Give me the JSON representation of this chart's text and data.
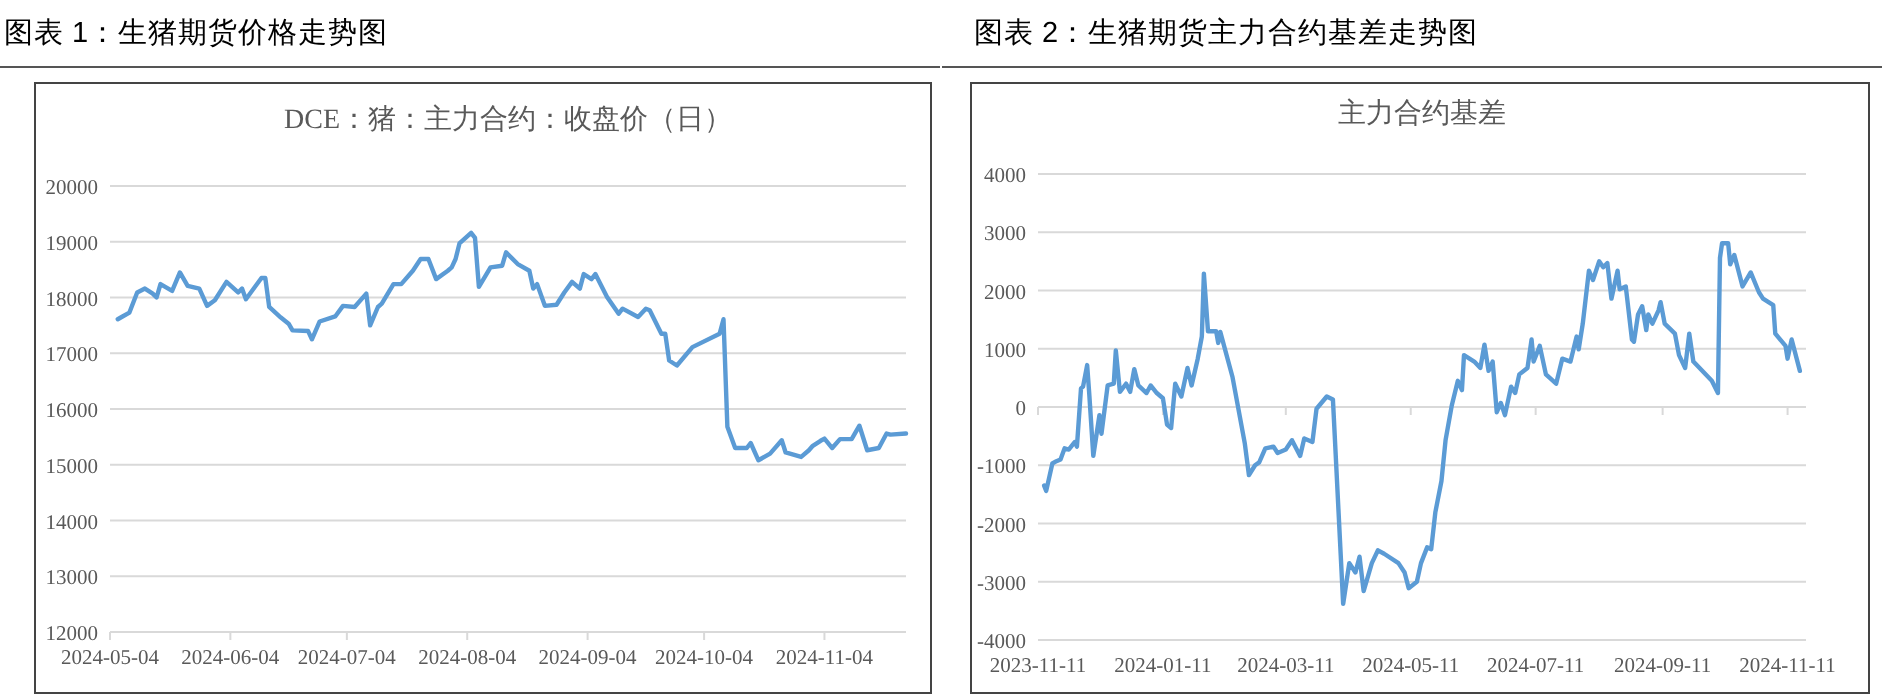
{
  "chart_data": [
    {
      "type": "line",
      "title": "图表 1：生猪期货价格走势图",
      "subtitle": "DCE：猪：主力合约：收盘价（日）",
      "grid": "y",
      "xlim": [
        "2024-05-04",
        "2024-11-25"
      ],
      "xticks": [
        "2024-05-04",
        "2024-06-04",
        "2024-07-04",
        "2024-08-04",
        "2024-09-04",
        "2024-10-04",
        "2024-11-04"
      ],
      "ylim": [
        12000,
        20000
      ],
      "yticks": [
        12000,
        13000,
        14000,
        15000,
        16000,
        17000,
        18000,
        19000,
        20000
      ],
      "x": [
        "2024-05-06",
        "2024-05-07",
        "2024-05-09",
        "2024-05-11",
        "2024-05-13",
        "2024-05-15",
        "2024-05-16",
        "2024-05-17",
        "2024-05-20",
        "2024-05-22",
        "2024-05-24",
        "2024-05-27",
        "2024-05-29",
        "2024-05-31",
        "2024-06-03",
        "2024-06-06",
        "2024-06-07",
        "2024-06-08",
        "2024-06-12",
        "2024-06-13",
        "2024-06-14",
        "2024-06-17",
        "2024-06-19",
        "2024-06-20",
        "2024-06-24",
        "2024-06-25",
        "2024-06-27",
        "2024-07-01",
        "2024-07-03",
        "2024-07-06",
        "2024-07-09",
        "2024-07-10",
        "2024-07-12",
        "2024-07-13",
        "2024-07-16",
        "2024-07-18",
        "2024-07-21",
        "2024-07-23",
        "2024-07-25",
        "2024-07-27",
        "2024-07-30",
        "2024-07-31",
        "2024-08-01",
        "2024-08-02",
        "2024-08-05",
        "2024-08-06",
        "2024-08-07",
        "2024-08-10",
        "2024-08-13",
        "2024-08-14",
        "2024-08-17",
        "2024-08-20",
        "2024-08-21",
        "2024-08-22",
        "2024-08-24",
        "2024-08-27",
        "2024-08-29",
        "2024-08-31",
        "2024-09-02",
        "2024-09-03",
        "2024-09-05",
        "2024-09-06",
        "2024-09-09",
        "2024-09-12",
        "2024-09-13",
        "2024-09-17",
        "2024-09-19",
        "2024-09-20",
        "2024-09-23",
        "2024-09-24",
        "2024-09-25",
        "2024-09-27",
        "2024-10-01",
        "2024-10-08",
        "2024-10-09",
        "2024-10-10",
        "2024-10-12",
        "2024-10-15",
        "2024-10-16",
        "2024-10-18",
        "2024-10-21",
        "2024-10-24",
        "2024-10-25",
        "2024-10-29",
        "2024-10-31",
        "2024-11-01",
        "2024-11-03",
        "2024-11-04",
        "2024-11-06",
        "2024-11-08",
        "2024-11-11",
        "2024-11-13",
        "2024-11-15",
        "2024-11-18",
        "2024-11-20",
        "2024-11-21",
        "2024-11-25"
      ],
      "series": [
        {
          "color": "#5b9bd5",
          "values": [
            17610,
            17650,
            17730,
            18090,
            18160,
            18070,
            18000,
            18240,
            18120,
            18450,
            18210,
            18160,
            17850,
            17950,
            18280,
            18090,
            18160,
            17970,
            18350,
            18350,
            17830,
            17640,
            17530,
            17410,
            17400,
            17250,
            17570,
            17660,
            17850,
            17830,
            18070,
            17500,
            17830,
            17890,
            18240,
            18240,
            18480,
            18690,
            18690,
            18330,
            18480,
            18540,
            18690,
            18970,
            19160,
            19070,
            18190,
            18540,
            18570,
            18810,
            18600,
            18480,
            18160,
            18240,
            17850,
            17870,
            18090,
            18280,
            18160,
            18420,
            18330,
            18420,
            18010,
            17710,
            17800,
            17650,
            17800,
            17770,
            17350,
            17350,
            16870,
            16780,
            17110,
            17350,
            17610,
            15680,
            15300,
            15300,
            15390,
            15080,
            15200,
            15440,
            15220,
            15140,
            15260,
            15340,
            15430,
            15470,
            15300,
            15460,
            15460,
            15700,
            15260,
            15300,
            15560,
            15540,
            15560
          ]
        }
      ]
    },
    {
      "type": "line",
      "title": "图表 2：生猪期货主力合约基差走势图",
      "subtitle": "主力合约基差",
      "grid": "y",
      "xlim": [
        "2023-11-11",
        "2024-11-20"
      ],
      "xticks": [
        "2023-11-11",
        "2024-01-11",
        "2024-03-11",
        "2024-05-11",
        "2024-07-11",
        "2024-09-11",
        "2024-11-11"
      ],
      "ylim": [
        -4000,
        4000
      ],
      "yticks": [
        -4000,
        -3000,
        -2000,
        -1000,
        0,
        1000,
        2000,
        3000,
        4000
      ],
      "x": [
        "2023-11-14",
        "2023-11-15",
        "2023-11-18",
        "2023-11-20",
        "2023-11-22",
        "2023-11-24",
        "2023-11-26",
        "2023-11-29",
        "2023-11-30",
        "2023-12-02",
        "2023-12-03",
        "2023-12-05",
        "2023-12-06",
        "2023-12-08",
        "2023-12-11",
        "2023-12-12",
        "2023-12-15",
        "2023-12-18",
        "2023-12-19",
        "2023-12-21",
        "2023-12-24",
        "2023-12-26",
        "2023-12-28",
        "2023-12-30",
        "2024-01-03",
        "2024-01-05",
        "2024-01-08",
        "2024-01-11",
        "2024-01-13",
        "2024-01-15",
        "2024-01-17",
        "2024-01-20",
        "2024-01-23",
        "2024-01-25",
        "2024-01-28",
        "2024-01-30",
        "2024-01-31",
        "2024-02-02",
        "2024-02-06",
        "2024-02-07",
        "2024-02-08",
        "2024-02-14",
        "2024-02-20",
        "2024-02-22",
        "2024-02-25",
        "2024-02-27",
        "2024-03-01",
        "2024-03-05",
        "2024-03-07",
        "2024-03-11",
        "2024-03-14",
        "2024-03-18",
        "2024-03-20",
        "2024-03-24",
        "2024-03-26",
        "2024-03-31",
        "2024-04-03",
        "2024-04-08",
        "2024-04-11",
        "2024-04-14",
        "2024-04-16",
        "2024-04-18",
        "2024-04-22",
        "2024-04-25",
        "2024-04-28",
        "2024-05-05",
        "2024-05-08",
        "2024-05-10",
        "2024-05-14",
        "2024-05-16",
        "2024-05-19",
        "2024-05-21",
        "2024-05-23",
        "2024-05-26",
        "2024-05-28",
        "2024-05-31",
        "2024-06-03",
        "2024-06-05",
        "2024-06-06",
        "2024-06-11",
        "2024-06-14",
        "2024-06-16",
        "2024-06-18",
        "2024-06-20",
        "2024-06-22",
        "2024-06-24",
        "2024-06-26",
        "2024-06-29",
        "2024-07-01",
        "2024-07-03",
        "2024-07-07",
        "2024-07-09",
        "2024-07-10",
        "2024-07-13",
        "2024-07-16",
        "2024-07-21",
        "2024-07-24",
        "2024-07-28",
        "2024-07-31",
        "2024-08-01",
        "2024-08-03",
        "2024-08-06",
        "2024-08-08",
        "2024-08-11",
        "2024-08-13",
        "2024-08-15",
        "2024-08-17",
        "2024-08-20",
        "2024-08-21",
        "2024-08-24",
        "2024-08-27",
        "2024-08-28",
        "2024-08-30",
        "2024-09-01",
        "2024-09-03",
        "2024-09-04",
        "2024-09-06",
        "2024-09-09",
        "2024-09-10",
        "2024-09-12",
        "2024-09-17",
        "2024-09-19",
        "2024-09-22",
        "2024-09-24",
        "2024-09-26",
        "2024-10-05",
        "2024-10-08",
        "2024-10-09",
        "2024-10-10",
        "2024-10-13",
        "2024-10-14",
        "2024-10-16",
        "2024-10-20",
        "2024-10-24",
        "2024-10-28",
        "2024-10-30",
        "2024-11-04",
        "2024-11-05",
        "2024-11-10",
        "2024-11-11",
        "2024-11-13",
        "2024-11-17"
      ],
      "series": [
        {
          "color": "#5b9bd5",
          "values": [
            -1350,
            -1440,
            -970,
            -930,
            -900,
            -710,
            -730,
            -600,
            -680,
            320,
            350,
            720,
            240,
            -840,
            -140,
            -460,
            370,
            400,
            970,
            260,
            400,
            260,
            650,
            370,
            240,
            370,
            240,
            150,
            -300,
            -360,
            400,
            180,
            670,
            370,
            830,
            1210,
            2290,
            1300,
            1300,
            1100,
            1290,
            510,
            -630,
            -1170,
            -1000,
            -950,
            -710,
            -680,
            -790,
            -730,
            -570,
            -840,
            -540,
            -600,
            -30,
            180,
            130,
            -3380,
            -2680,
            -2840,
            -2570,
            -3160,
            -2680,
            -2460,
            -2520,
            -2680,
            -2840,
            -3110,
            -3000,
            -2680,
            -2410,
            -2440,
            -1810,
            -1270,
            -570,
            20,
            450,
            290,
            890,
            780,
            670,
            1070,
            620,
            780,
            -90,
            70,
            -140,
            350,
            240,
            560,
            670,
            1160,
            780,
            1050,
            560,
            400,
            830,
            780,
            1210,
            990,
            1430,
            2340,
            2180,
            2500,
            2400,
            2470,
            1860,
            2340,
            2020,
            2070,
            1160,
            1120,
            1590,
            1730,
            1320,
            1590,
            1430,
            1660,
            1800,
            1430,
            1260,
            890,
            670,
            1260,
            780,
            450,
            240,
            2560,
            2810,
            2810,
            2450,
            2610,
            2070,
            2310,
            1970,
            1860,
            1750,
            1260,
            1050,
            830,
            1160,
            620
          ]
        }
      ]
    }
  ]
}
